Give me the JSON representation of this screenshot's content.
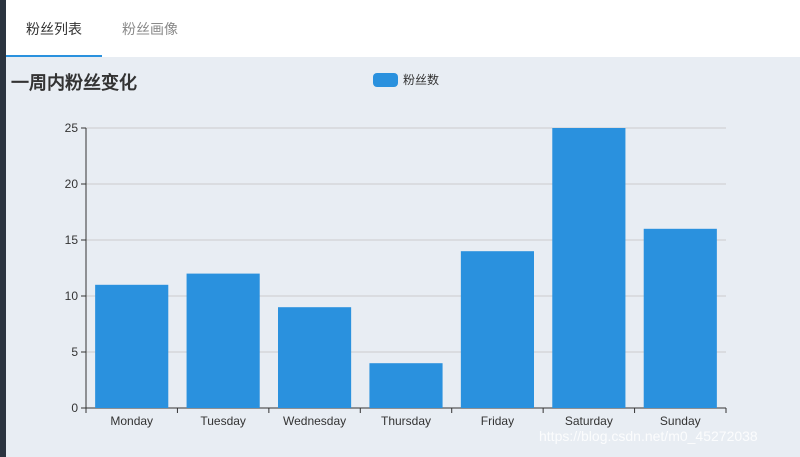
{
  "tabs": [
    {
      "label": "粉丝列表",
      "active": true
    },
    {
      "label": "粉丝画像",
      "active": false
    }
  ],
  "colors": {
    "accent": "#2a91de",
    "content_bg": "#e8edf3",
    "gridline": "#cccccc",
    "axis": "#333333"
  },
  "watermark": "https://blog.csdn.net/m0_45272038",
  "chart_data": {
    "type": "bar",
    "title": "一周内粉丝变化",
    "legend": [
      "粉丝数"
    ],
    "legend_position": "top-center",
    "categories": [
      "Monday",
      "Tuesday",
      "Wednesday",
      "Thursday",
      "Friday",
      "Saturday",
      "Sunday"
    ],
    "series": [
      {
        "name": "粉丝数",
        "values": [
          11,
          12,
          9,
          4,
          14,
          25,
          16
        ],
        "color": "#2a91de"
      }
    ],
    "ylim": [
      0,
      25
    ],
    "yticks": [
      0,
      5,
      10,
      15,
      20,
      25
    ],
    "grid": true
  }
}
